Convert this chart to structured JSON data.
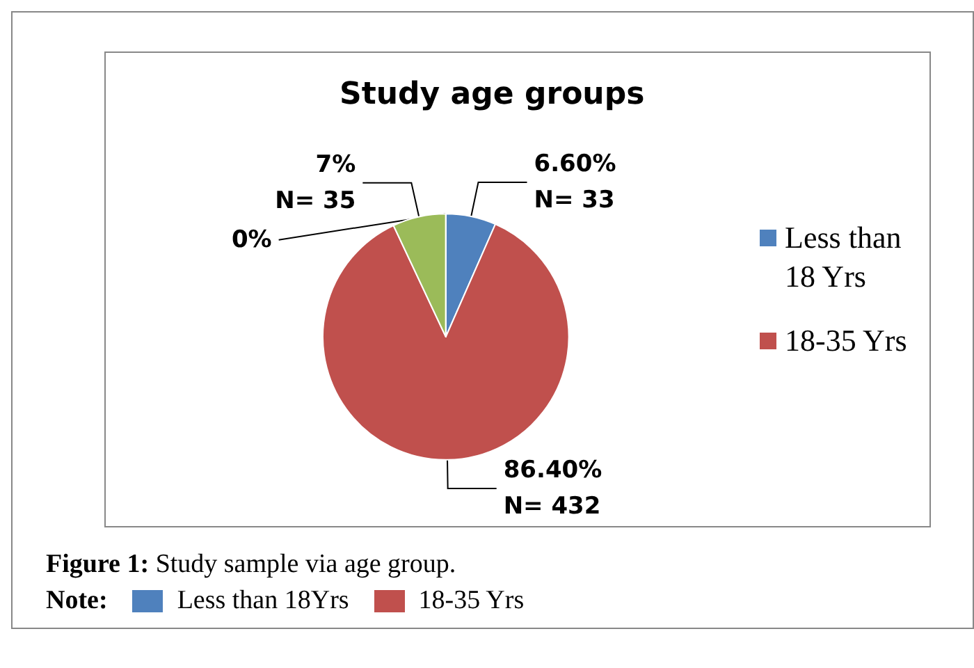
{
  "chart_data": {
    "type": "pie",
    "title": "Study age groups",
    "categories": [
      "Less than 18 Yrs",
      "18-35 Yrs",
      null,
      null
    ],
    "values": [
      6.6,
      86.4,
      7,
      0
    ],
    "colors": [
      "#4f81bd",
      "#c0504d",
      "#9bbb59",
      "#8064a2"
    ],
    "value_labels": [
      "6.60%\nN= 33",
      "86.40%\nN= 432",
      "7%\nN= 35",
      "0%"
    ],
    "legend": "right",
    "annotations": [
      "Figure 1: Study sample via age group.",
      "Note:",
      "Less than 18Yrs",
      "18-35 Yrs"
    ]
  }
}
